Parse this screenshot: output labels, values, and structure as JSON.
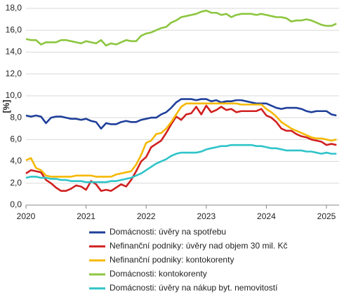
{
  "chart_data": {
    "type": "line",
    "y_label": "[%]",
    "categories": [
      "2020",
      null,
      null,
      null,
      null,
      null,
      null,
      null,
      null,
      null,
      null,
      null,
      "2021",
      null,
      null,
      null,
      null,
      null,
      null,
      null,
      null,
      null,
      null,
      null,
      "2022",
      null,
      null,
      null,
      null,
      null,
      null,
      null,
      null,
      null,
      null,
      null,
      "2023",
      null,
      null,
      null,
      null,
      null,
      null,
      null,
      null,
      null,
      null,
      null,
      "2024",
      null,
      null,
      null,
      null,
      null,
      null,
      null,
      null,
      null,
      null,
      null,
      "2025",
      null,
      null
    ],
    "ylim": [
      0,
      18
    ],
    "yticks": [
      {
        "value": 0,
        "label": "0,0"
      },
      {
        "value": 2,
        "label": "2,0"
      },
      {
        "value": 4,
        "label": "4,0"
      },
      {
        "value": 6,
        "label": "6,0"
      },
      {
        "value": 8,
        "label": "8,0"
      },
      {
        "value": 10,
        "label": "10,0"
      },
      {
        "value": 12,
        "label": "12,0"
      },
      {
        "value": 14,
        "label": "14,0"
      },
      {
        "value": 16,
        "label": "16,0"
      },
      {
        "value": 18,
        "label": "18,0"
      }
    ],
    "grid": true,
    "series": [
      {
        "name": "Domácnosti: úvěry na spotřebu",
        "color": "#1f3f9a",
        "values": [
          8.2,
          8.1,
          8.2,
          8.1,
          7.5,
          8.0,
          8.1,
          8.1,
          8.0,
          7.9,
          7.9,
          7.8,
          7.9,
          7.7,
          7.6,
          7.0,
          7.5,
          7.4,
          7.4,
          7.6,
          7.7,
          7.6,
          7.6,
          7.8,
          7.9,
          8.0,
          8.0,
          8.3,
          8.5,
          8.9,
          9.4,
          9.7,
          9.7,
          9.7,
          9.6,
          9.7,
          9.7,
          9.5,
          9.6,
          9.4,
          9.5,
          9.5,
          9.6,
          9.6,
          9.5,
          9.4,
          9.3,
          9.3,
          9.3,
          9.1,
          8.9,
          8.8,
          8.9,
          8.9,
          8.9,
          8.8,
          8.6,
          8.5,
          8.6,
          8.6,
          8.6,
          8.3,
          8.2
        ]
      },
      {
        "name": "Nefinanční podniky: úvěry nad objem 30 mil. Kč",
        "color": "#d0201f",
        "values": [
          2.9,
          3.2,
          3.1,
          3.0,
          2.3,
          2.0,
          1.6,
          1.3,
          1.3,
          1.5,
          1.8,
          1.7,
          1.4,
          2.2,
          1.9,
          1.3,
          1.4,
          1.3,
          1.6,
          1.9,
          1.7,
          2.3,
          3.1,
          4.0,
          4.4,
          5.3,
          5.6,
          5.9,
          6.6,
          7.4,
          8.1,
          7.8,
          8.3,
          8.4,
          9.0,
          8.3,
          9.1,
          8.5,
          8.7,
          9.0,
          8.7,
          8.8,
          8.5,
          8.6,
          8.6,
          8.6,
          8.6,
          8.8,
          8.2,
          8.0,
          7.6,
          7.0,
          6.8,
          6.8,
          6.5,
          6.3,
          6.2,
          6.0,
          5.9,
          5.8,
          5.5,
          5.6,
          5.5
        ]
      },
      {
        "name": "Nefinanční podniky: kontokorenty",
        "color": "#f5b800",
        "values": [
          4.1,
          4.3,
          3.4,
          3.2,
          2.7,
          2.6,
          2.6,
          2.6,
          2.6,
          2.6,
          2.7,
          2.7,
          2.7,
          2.7,
          2.6,
          2.6,
          2.6,
          2.6,
          2.8,
          2.9,
          3.0,
          3.1,
          3.7,
          4.6,
          5.7,
          5.9,
          6.5,
          6.6,
          7.0,
          7.6,
          8.3,
          9.0,
          9.3,
          9.3,
          9.3,
          9.3,
          9.3,
          9.3,
          9.3,
          9.3,
          9.3,
          9.3,
          9.3,
          9.2,
          9.2,
          9.2,
          9.2,
          9.2,
          8.8,
          8.5,
          8.1,
          7.6,
          7.3,
          7.0,
          6.8,
          6.6,
          6.4,
          6.2,
          6.1,
          6.1,
          6.0,
          5.9,
          6.0
        ]
      },
      {
        "name": "Domácnosti: kontokorenty",
        "color": "#8cc63f",
        "values": [
          15.2,
          15.1,
          15.1,
          14.7,
          14.9,
          14.9,
          14.9,
          15.1,
          15.1,
          15.0,
          14.9,
          14.8,
          15.0,
          14.9,
          14.8,
          15.1,
          14.6,
          14.8,
          14.7,
          14.9,
          15.1,
          15.0,
          15.0,
          15.5,
          15.7,
          15.8,
          16.0,
          16.2,
          16.3,
          16.7,
          16.9,
          17.2,
          17.3,
          17.4,
          17.5,
          17.7,
          17.8,
          17.6,
          17.6,
          17.4,
          17.5,
          17.2,
          17.4,
          17.5,
          17.5,
          17.5,
          17.4,
          17.5,
          17.4,
          17.3,
          17.2,
          17.2,
          17.1,
          16.8,
          16.9,
          16.9,
          17.0,
          16.9,
          16.7,
          16.5,
          16.4,
          16.4,
          16.6
        ]
      },
      {
        "name": "Domácnosti: úvěry na nákup byt. nemovitostí",
        "color": "#2ec4c9",
        "values": [
          2.5,
          2.6,
          2.6,
          2.5,
          2.5,
          2.4,
          2.4,
          2.3,
          2.3,
          2.2,
          2.2,
          2.2,
          2.1,
          2.1,
          2.1,
          2.1,
          2.1,
          2.2,
          2.2,
          2.3,
          2.4,
          2.5,
          2.7,
          2.9,
          3.2,
          3.5,
          3.8,
          4.0,
          4.2,
          4.5,
          4.7,
          4.8,
          4.8,
          4.8,
          4.8,
          4.9,
          5.1,
          5.2,
          5.3,
          5.4,
          5.4,
          5.5,
          5.5,
          5.5,
          5.5,
          5.5,
          5.4,
          5.4,
          5.3,
          5.2,
          5.2,
          5.1,
          5.0,
          5.0,
          5.0,
          5.0,
          4.9,
          4.9,
          4.8,
          4.7,
          4.8,
          4.7,
          4.7
        ]
      }
    ]
  }
}
